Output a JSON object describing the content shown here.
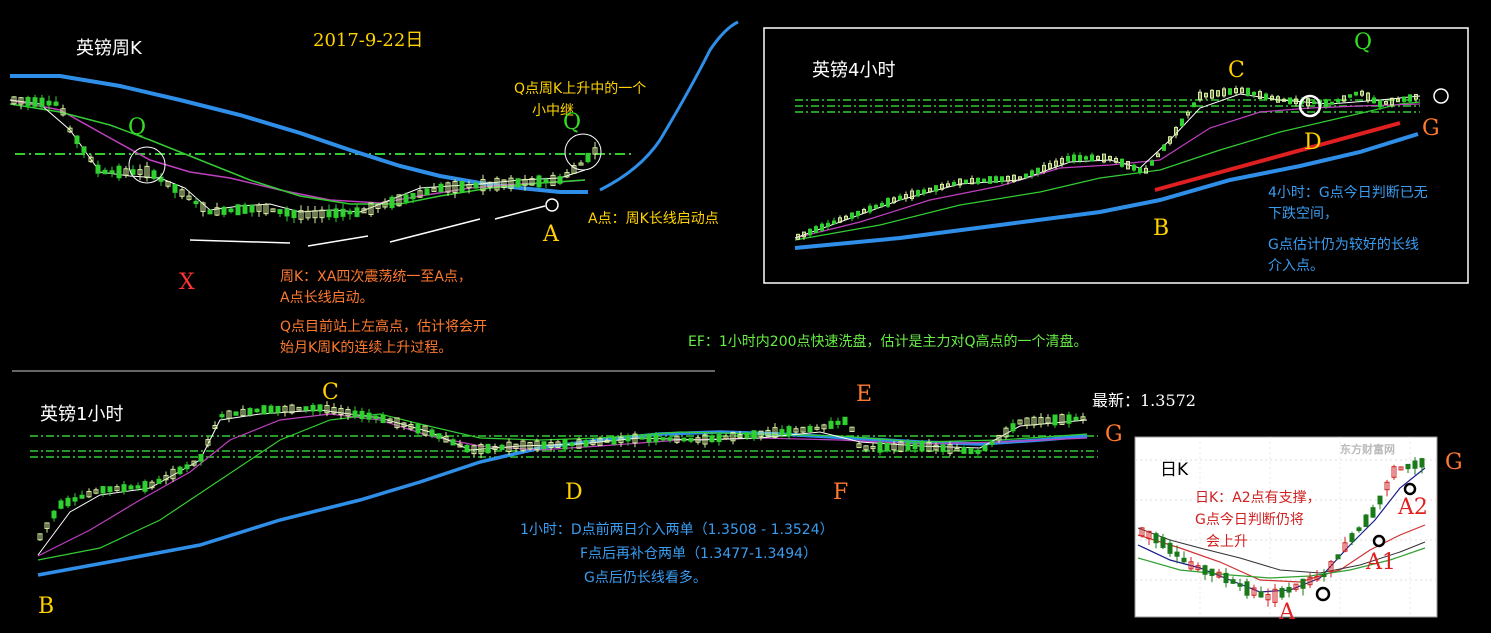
{
  "weekly": {
    "title": "英镑周K",
    "date": "2017-9-22日",
    "q_note_line1": "Q点周K上升中的一个",
    "q_note_line2": "小中继",
    "a_note": "A点：周K长线启动点",
    "desc_line1": "周K：XA四次震荡统一至A点，",
    "desc_line2": "A点长线启动。",
    "desc_line3": "Q点目前站上左高点，估计将会开",
    "desc_line4": "始月K周K的连续上升过程。",
    "labels": {
      "q1": "Q",
      "q2": "Q",
      "a": "A",
      "x": "X"
    }
  },
  "h4": {
    "title": "英镑4小时",
    "labels": {
      "c": "C",
      "q": "Q",
      "d": "D",
      "g": "G",
      "b": "B"
    },
    "note_line1": "4小时：G点今日判断已无",
    "note_line2": "下跌空间，",
    "note_line3": "G点估计仍为较好的长线",
    "note_line4": "介入点。"
  },
  "ef_note": "EF：1小时内200点快速洗盘，估计是主力对Q高点的一个清盘。",
  "h1": {
    "title": "英镑1小时",
    "latest": "最新：1.3572",
    "labels": {
      "c": "C",
      "e": "E",
      "g": "G",
      "d": "D",
      "f": "F",
      "b": "B"
    },
    "note_line1": "1小时：D点前两日介入两单（1.3508 - 1.3524）",
    "note_line2": "F点后再补仓两单（1.3477-1.3494）",
    "note_line3": "G点后仍长线看多。"
  },
  "daily": {
    "title": "日K",
    "note_line1": "日K：A2点有支撑，",
    "note_line2": "G点今日判断仍将",
    "note_line3": "会上升",
    "labels": {
      "g": "G",
      "a2": "A2",
      "a1": "A1",
      "a": "A"
    },
    "watermark": "东方财富网"
  },
  "colors": {
    "background": "#000000",
    "candle_bull": "#d8f0a0",
    "candle_bear": "#2fd02f",
    "ma_long": "#2f8fe8",
    "ma_mid": "#c040c0",
    "ma_short": "#d8f0d8",
    "ma_green": "#33cc33",
    "support_line": "#e02020",
    "dash_line": "#33cc33"
  },
  "icons": [
    "circle-marker-icon"
  ]
}
